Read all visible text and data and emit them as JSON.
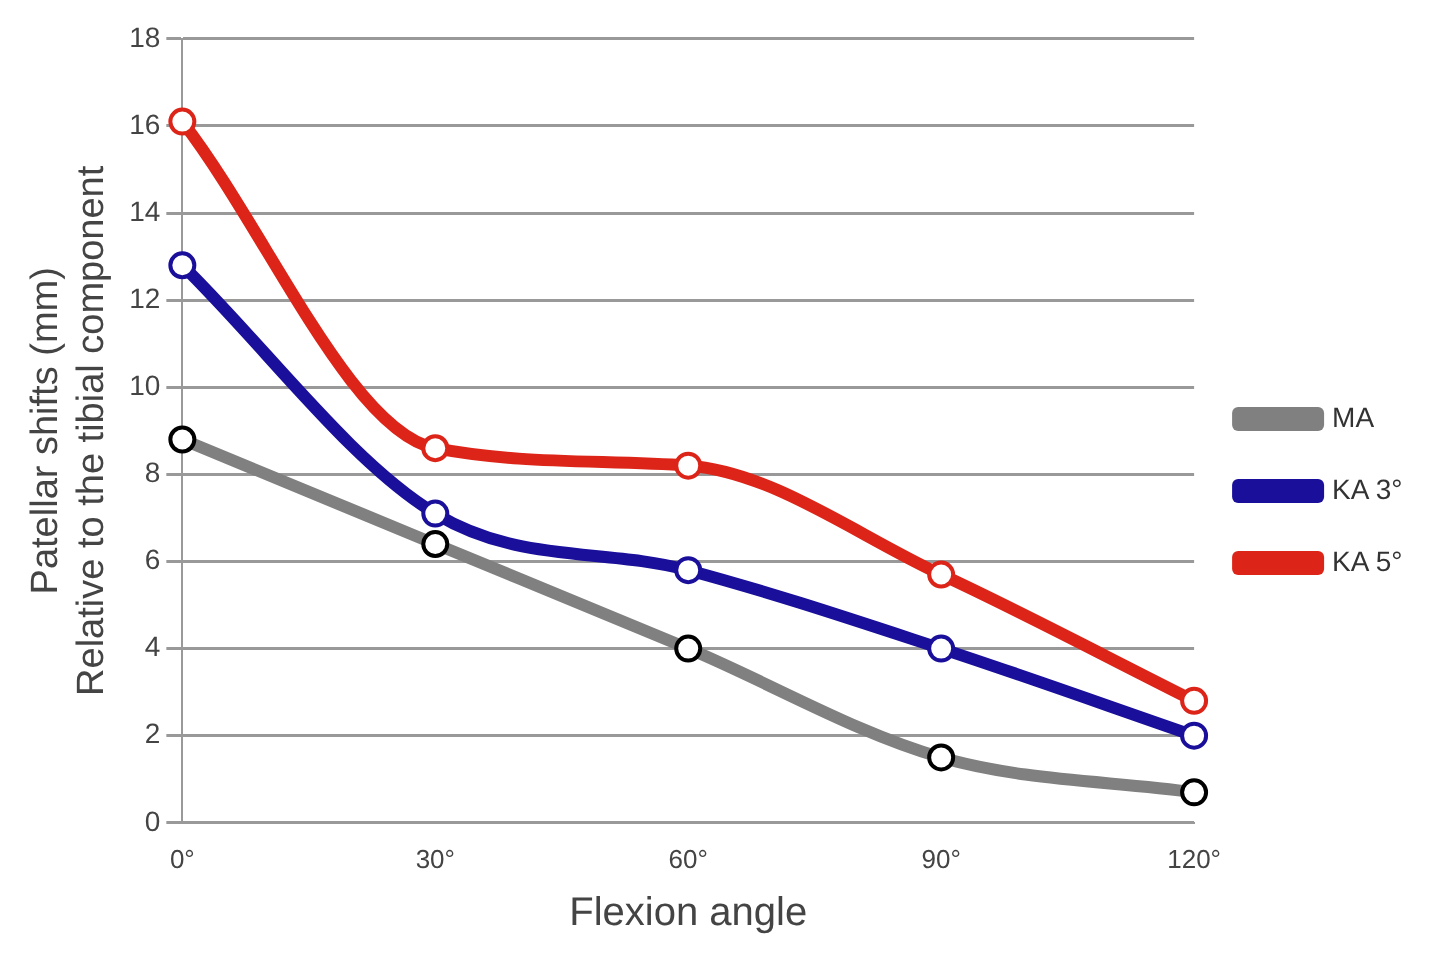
{
  "chart_data": {
    "type": "line",
    "xlabel": "Flexion angle",
    "ylabel": "Patellar shifts (mm)\nRelative to the tibial component",
    "categories": [
      "0°",
      "30°",
      "60°",
      "90°",
      "120°"
    ],
    "series": [
      {
        "name": "MA",
        "color": "#808080",
        "values": [
          8.8,
          6.4,
          4.0,
          1.5,
          0.7
        ]
      },
      {
        "name": "KA 3°",
        "color": "#1a0f9a",
        "values": [
          12.8,
          7.1,
          5.8,
          4.0,
          2.0
        ]
      },
      {
        "name": "KA 5°",
        "color": "#dd2418",
        "values": [
          16.1,
          8.6,
          8.2,
          5.7,
          2.8
        ]
      }
    ],
    "ylim": [
      0,
      18
    ],
    "yticks": [
      0,
      2,
      4,
      6,
      8,
      10,
      12,
      14,
      16,
      18
    ],
    "grid": "y",
    "legend": "right",
    "marker": "circle"
  }
}
